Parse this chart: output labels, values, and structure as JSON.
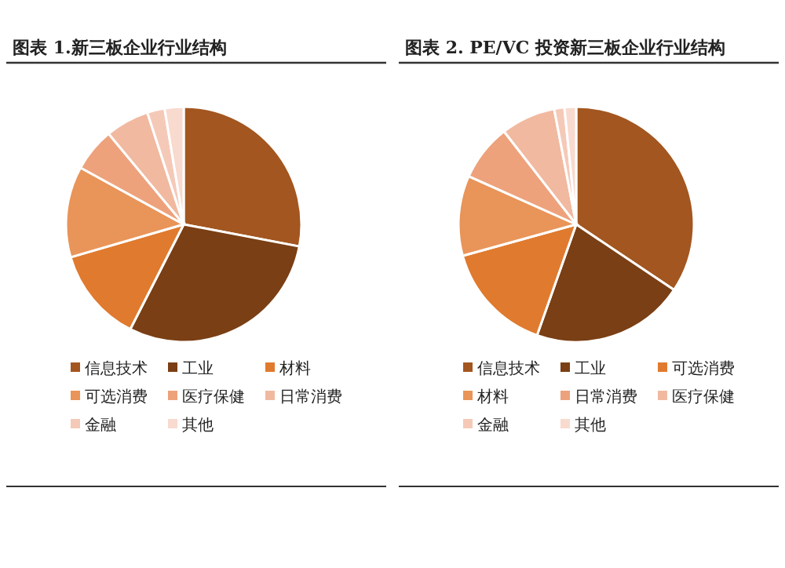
{
  "chart_data": [
    {
      "type": "pie",
      "title": "图表 1.新三板企业行业结构",
      "categories": [
        "信息技术",
        "工业",
        "材料",
        "可选消费",
        "医疗保健",
        "日常消费",
        "金融",
        "其他"
      ],
      "values": [
        28,
        29.5,
        13,
        12.5,
        6,
        6,
        2.4,
        2.6
      ],
      "colors": [
        "#a3561f",
        "#7a3f14",
        "#e07a2e",
        "#e99458",
        "#eda27c",
        "#f1b9a0",
        "#f5c9b8",
        "#f8dacf"
      ],
      "legend": "bottom"
    },
    {
      "type": "pie",
      "title": "图表 2. PE/VC 投资新三板企业行业结构",
      "categories": [
        "信息技术",
        "工业",
        "可选消费",
        "材料",
        "日常消费",
        "医疗保健",
        "金融",
        "其他"
      ],
      "values": [
        34.4,
        21,
        15.3,
        11,
        7.8,
        7.5,
        1.4,
        1.6
      ],
      "colors": [
        "#a3561f",
        "#7a3f14",
        "#e07a2e",
        "#e99458",
        "#eda27c",
        "#f1b9a0",
        "#f5c9b8",
        "#f8dacf"
      ],
      "legend": "bottom"
    }
  ]
}
